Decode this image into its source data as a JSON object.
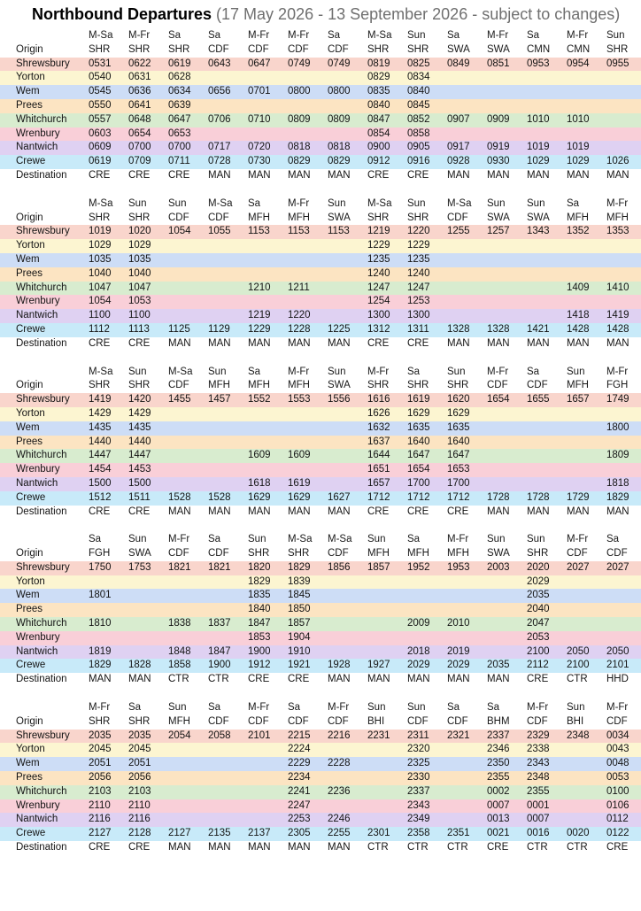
{
  "title": {
    "main": "Northbound Departures",
    "subtitle": "(17 May 2026 - 13 September 2026 - subject to changes)"
  },
  "labels": {
    "origin": "Origin",
    "destination": "Destination"
  },
  "stations": [
    "Shrewsbury",
    "Yorton",
    "Wem",
    "Prees",
    "Whitchurch",
    "Wrenbury",
    "Nantwich",
    "Crewe"
  ],
  "station_colors": {
    "Shrewsbury": "#f9d5cc",
    "Yorton": "#fcf5d1",
    "Wem": "#cdddf6",
    "Prees": "#fce4c2",
    "Whitchurch": "#d8eccf",
    "Wrenbury": "#f9cfd8",
    "Nantwich": "#dfd1f2",
    "Crewe": "#c8eaf9"
  },
  "blocks": [
    {
      "days": [
        "M-Sa",
        "M-Fr",
        "Sa",
        "Sa",
        "M-Fr",
        "M-Fr",
        "Sa",
        "M-Sa",
        "Sun",
        "Sa",
        "M-Fr",
        "Sa",
        "M-Fr",
        "Sun"
      ],
      "operators": [
        "SHR",
        "SHR",
        "SHR",
        "CDF",
        "CDF",
        "CDF",
        "CDF",
        "SHR",
        "SHR",
        "SWA",
        "SWA",
        "CMN",
        "CMN",
        "SHR"
      ],
      "times": [
        [
          "0531",
          "0622",
          "0619",
          "0643",
          "0647",
          "0749",
          "0749",
          "0819",
          "0825",
          "0849",
          "0851",
          "0953",
          "0954",
          "0955"
        ],
        [
          "0540",
          "0631",
          "0628",
          "",
          "",
          "",
          "",
          "0829",
          "0834",
          "",
          "",
          "",
          "",
          ""
        ],
        [
          "0545",
          "0636",
          "0634",
          "0656",
          "0701",
          "0800",
          "0800",
          "0835",
          "0840",
          "",
          "",
          "",
          "",
          ""
        ],
        [
          "0550",
          "0641",
          "0639",
          "",
          "",
          "",
          "",
          "0840",
          "0845",
          "",
          "",
          "",
          "",
          ""
        ],
        [
          "0557",
          "0648",
          "0647",
          "0706",
          "0710",
          "0809",
          "0809",
          "0847",
          "0852",
          "0907",
          "0909",
          "1010",
          "1010",
          ""
        ],
        [
          "0603",
          "0654",
          "0653",
          "",
          "",
          "",
          "",
          "0854",
          "0858",
          "",
          "",
          "",
          "",
          ""
        ],
        [
          "0609",
          "0700",
          "0700",
          "0717",
          "0720",
          "0818",
          "0818",
          "0900",
          "0905",
          "0917",
          "0919",
          "1019",
          "1019",
          ""
        ],
        [
          "0619",
          "0709",
          "0711",
          "0728",
          "0730",
          "0829",
          "0829",
          "0912",
          "0916",
          "0928",
          "0930",
          "1029",
          "1029",
          "1026"
        ]
      ],
      "destinations": [
        "CRE",
        "CRE",
        "CRE",
        "MAN",
        "MAN",
        "MAN",
        "MAN",
        "CRE",
        "CRE",
        "MAN",
        "MAN",
        "MAN",
        "MAN",
        "MAN"
      ]
    },
    {
      "days": [
        "M-Sa",
        "Sun",
        "Sun",
        "M-Sa",
        "Sa",
        "M-Fr",
        "Sun",
        "M-Sa",
        "Sun",
        "M-Sa",
        "Sun",
        "Sun",
        "Sa",
        "M-Fr"
      ],
      "operators": [
        "SHR",
        "SHR",
        "CDF",
        "CDF",
        "MFH",
        "MFH",
        "SWA",
        "SHR",
        "SHR",
        "CDF",
        "SWA",
        "SWA",
        "MFH",
        "MFH"
      ],
      "times": [
        [
          "1019",
          "1020",
          "1054",
          "1055",
          "1153",
          "1153",
          "1153",
          "1219",
          "1220",
          "1255",
          "1257",
          "1343",
          "1352",
          "1353"
        ],
        [
          "1029",
          "1029",
          "",
          "",
          "",
          "",
          "",
          "1229",
          "1229",
          "",
          "",
          "",
          "",
          ""
        ],
        [
          "1035",
          "1035",
          "",
          "",
          "",
          "",
          "",
          "1235",
          "1235",
          "",
          "",
          "",
          "",
          ""
        ],
        [
          "1040",
          "1040",
          "",
          "",
          "",
          "",
          "",
          "1240",
          "1240",
          "",
          "",
          "",
          "",
          ""
        ],
        [
          "1047",
          "1047",
          "",
          "",
          "1210",
          "1211",
          "",
          "1247",
          "1247",
          "",
          "",
          "",
          "1409",
          "1410"
        ],
        [
          "1054",
          "1053",
          "",
          "",
          "",
          "",
          "",
          "1254",
          "1253",
          "",
          "",
          "",
          "",
          ""
        ],
        [
          "1100",
          "1100",
          "",
          "",
          "1219",
          "1220",
          "",
          "1300",
          "1300",
          "",
          "",
          "",
          "1418",
          "1419"
        ],
        [
          "1112",
          "1113",
          "1125",
          "1129",
          "1229",
          "1228",
          "1225",
          "1312",
          "1311",
          "1328",
          "1328",
          "1421",
          "1428",
          "1428"
        ]
      ],
      "destinations": [
        "CRE",
        "CRE",
        "MAN",
        "MAN",
        "MAN",
        "MAN",
        "MAN",
        "CRE",
        "CRE",
        "MAN",
        "MAN",
        "MAN",
        "MAN",
        "MAN"
      ]
    },
    {
      "days": [
        "M-Sa",
        "Sun",
        "M-Sa",
        "Sun",
        "Sa",
        "M-Fr",
        "Sun",
        "M-Fr",
        "Sa",
        "Sun",
        "M-Fr",
        "Sa",
        "Sun",
        "M-Fr"
      ],
      "operators": [
        "SHR",
        "SHR",
        "CDF",
        "MFH",
        "MFH",
        "MFH",
        "SWA",
        "SHR",
        "SHR",
        "SHR",
        "CDF",
        "CDF",
        "MFH",
        "FGH"
      ],
      "times": [
        [
          "1419",
          "1420",
          "1455",
          "1457",
          "1552",
          "1553",
          "1556",
          "1616",
          "1619",
          "1620",
          "1654",
          "1655",
          "1657",
          "1749"
        ],
        [
          "1429",
          "1429",
          "",
          "",
          "",
          "",
          "",
          "1626",
          "1629",
          "1629",
          "",
          "",
          "",
          ""
        ],
        [
          "1435",
          "1435",
          "",
          "",
          "",
          "",
          "",
          "1632",
          "1635",
          "1635",
          "",
          "",
          "",
          "1800"
        ],
        [
          "1440",
          "1440",
          "",
          "",
          "",
          "",
          "",
          "1637",
          "1640",
          "1640",
          "",
          "",
          "",
          ""
        ],
        [
          "1447",
          "1447",
          "",
          "",
          "1609",
          "1609",
          "",
          "1644",
          "1647",
          "1647",
          "",
          "",
          "",
          "1809"
        ],
        [
          "1454",
          "1453",
          "",
          "",
          "",
          "",
          "",
          "1651",
          "1654",
          "1653",
          "",
          "",
          "",
          ""
        ],
        [
          "1500",
          "1500",
          "",
          "",
          "1618",
          "1619",
          "",
          "1657",
          "1700",
          "1700",
          "",
          "",
          "",
          "1818"
        ],
        [
          "1512",
          "1511",
          "1528",
          "1528",
          "1629",
          "1629",
          "1627",
          "1712",
          "1712",
          "1712",
          "1728",
          "1728",
          "1729",
          "1829"
        ]
      ],
      "destinations": [
        "CRE",
        "CRE",
        "MAN",
        "MAN",
        "MAN",
        "MAN",
        "MAN",
        "CRE",
        "CRE",
        "CRE",
        "MAN",
        "MAN",
        "MAN",
        "MAN"
      ]
    },
    {
      "days": [
        "Sa",
        "Sun",
        "M-Fr",
        "Sa",
        "Sun",
        "M-Sa",
        "M-Sa",
        "Sun",
        "Sa",
        "M-Fr",
        "Sun",
        "Sun",
        "M-Fr",
        "Sa"
      ],
      "operators": [
        "FGH",
        "SWA",
        "CDF",
        "CDF",
        "SHR",
        "SHR",
        "CDF",
        "MFH",
        "MFH",
        "MFH",
        "SWA",
        "SHR",
        "CDF",
        "CDF"
      ],
      "times": [
        [
          "1750",
          "1753",
          "1821",
          "1821",
          "1820",
          "1829",
          "1856",
          "1857",
          "1952",
          "1953",
          "2003",
          "2020",
          "2027",
          "2027"
        ],
        [
          "",
          "",
          "",
          "",
          "1829",
          "1839",
          "",
          "",
          "",
          "",
          "",
          "2029",
          "",
          ""
        ],
        [
          "1801",
          "",
          "",
          "",
          "1835",
          "1845",
          "",
          "",
          "",
          "",
          "",
          "2035",
          "",
          ""
        ],
        [
          "",
          "",
          "",
          "",
          "1840",
          "1850",
          "",
          "",
          "",
          "",
          "",
          "2040",
          "",
          ""
        ],
        [
          "1810",
          "",
          "1838",
          "1837",
          "1847",
          "1857",
          "",
          "",
          "2009",
          "2010",
          "",
          "2047",
          "",
          ""
        ],
        [
          "",
          "",
          "",
          "",
          "1853",
          "1904",
          "",
          "",
          "",
          "",
          "",
          "2053",
          "",
          ""
        ],
        [
          "1819",
          "",
          "1848",
          "1847",
          "1900",
          "1910",
          "",
          "",
          "2018",
          "2019",
          "",
          "2100",
          "2050",
          "2050"
        ],
        [
          "1829",
          "1828",
          "1858",
          "1900",
          "1912",
          "1921",
          "1928",
          "1927",
          "2029",
          "2029",
          "2035",
          "2112",
          "2100",
          "2101"
        ]
      ],
      "destinations": [
        "MAN",
        "MAN",
        "CTR",
        "CTR",
        "CRE",
        "CRE",
        "MAN",
        "MAN",
        "MAN",
        "MAN",
        "MAN",
        "CRE",
        "CTR",
        "HHD"
      ]
    },
    {
      "days": [
        "M-Fr",
        "Sa",
        "Sun",
        "Sa",
        "M-Fr",
        "Sa",
        "M-Fr",
        "Sun",
        "Sun",
        "Sa",
        "Sa",
        "M-Fr",
        "Sun",
        "M-Fr"
      ],
      "operators": [
        "SHR",
        "SHR",
        "MFH",
        "CDF",
        "CDF",
        "CDF",
        "CDF",
        "BHI",
        "CDF",
        "CDF",
        "BHM",
        "CDF",
        "BHI",
        "CDF"
      ],
      "times": [
        [
          "2035",
          "2035",
          "2054",
          "2058",
          "2101",
          "2215",
          "2216",
          "2231",
          "2311",
          "2321",
          "2337",
          "2329",
          "2348",
          "0034"
        ],
        [
          "2045",
          "2045",
          "",
          "",
          "",
          "2224",
          "",
          "",
          "2320",
          "",
          "2346",
          "2338",
          "",
          "0043"
        ],
        [
          "2051",
          "2051",
          "",
          "",
          "",
          "2229",
          "2228",
          "",
          "2325",
          "",
          "2350",
          "2343",
          "",
          "0048"
        ],
        [
          "2056",
          "2056",
          "",
          "",
          "",
          "2234",
          "",
          "",
          "2330",
          "",
          "2355",
          "2348",
          "",
          "0053"
        ],
        [
          "2103",
          "2103",
          "",
          "",
          "",
          "2241",
          "2236",
          "",
          "2337",
          "",
          "0002",
          "2355",
          "",
          "0100"
        ],
        [
          "2110",
          "2110",
          "",
          "",
          "",
          "2247",
          "",
          "",
          "2343",
          "",
          "0007",
          "0001",
          "",
          "0106"
        ],
        [
          "2116",
          "2116",
          "",
          "",
          "",
          "2253",
          "2246",
          "",
          "2349",
          "",
          "0013",
          "0007",
          "",
          "0112"
        ],
        [
          "2127",
          "2128",
          "2127",
          "2135",
          "2137",
          "2305",
          "2255",
          "2301",
          "2358",
          "2351",
          "0021",
          "0016",
          "0020",
          "0122"
        ]
      ],
      "destinations": [
        "CRE",
        "CRE",
        "MAN",
        "MAN",
        "MAN",
        "MAN",
        "MAN",
        "CTR",
        "CTR",
        "CTR",
        "CRE",
        "CTR",
        "CTR",
        "CRE"
      ]
    }
  ]
}
